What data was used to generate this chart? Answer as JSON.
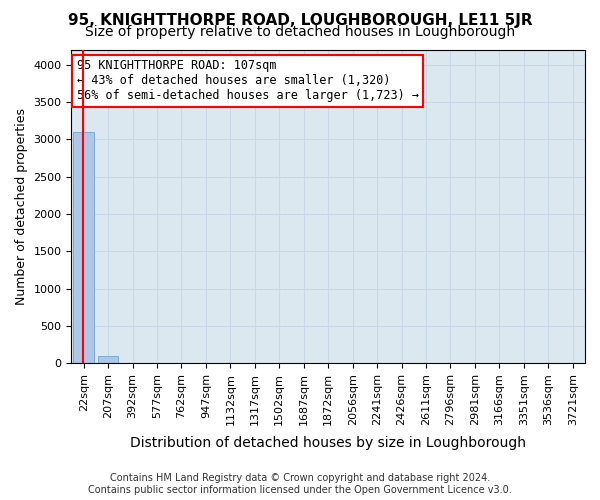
{
  "title": "95, KNIGHTTHORPE ROAD, LOUGHBOROUGH, LE11 5JR",
  "subtitle": "Size of property relative to detached houses in Loughborough",
  "xlabel": "Distribution of detached houses by size in Loughborough",
  "ylabel": "Number of detached properties",
  "footer_line1": "Contains HM Land Registry data © Crown copyright and database right 2024.",
  "footer_line2": "Contains public sector information licensed under the Open Government Licence v3.0.",
  "bar_labels": [
    "22sqm",
    "207sqm",
    "392sqm",
    "577sqm",
    "762sqm",
    "947sqm",
    "1132sqm",
    "1317sqm",
    "1502sqm",
    "1687sqm",
    "1872sqm",
    "2056sqm",
    "2241sqm",
    "2426sqm",
    "2611sqm",
    "2796sqm",
    "2981sqm",
    "3166sqm",
    "3351sqm",
    "3536sqm",
    "3721sqm"
  ],
  "bar_heights": [
    3100,
    100,
    3,
    2,
    2,
    1,
    1,
    1,
    1,
    0,
    0,
    0,
    1,
    0,
    0,
    0,
    0,
    0,
    0,
    0
  ],
  "bar_color": "#aec6e8",
  "bar_edge_color": "#7aadd4",
  "property_size": 107,
  "annot_line1": "95 KNIGHTTHORPE ROAD: 107sqm",
  "annot_line2": "← 43% of detached houses are smaller (1,320)",
  "annot_line3": "56% of semi-detached houses are larger (1,723) →",
  "annotation_box_color": "white",
  "annotation_box_edge_color": "red",
  "marker_line_color": "red",
  "grid_color": "#c8d8e8",
  "background_color": "#dce8f0",
  "ylim": [
    0,
    4200
  ],
  "yticks": [
    0,
    500,
    1000,
    1500,
    2000,
    2500,
    3000,
    3500,
    4000
  ],
  "title_fontsize": 11,
  "subtitle_fontsize": 10,
  "xlabel_fontsize": 10,
  "ylabel_fontsize": 9,
  "tick_fontsize": 8,
  "annot_fontsize": 8.5
}
